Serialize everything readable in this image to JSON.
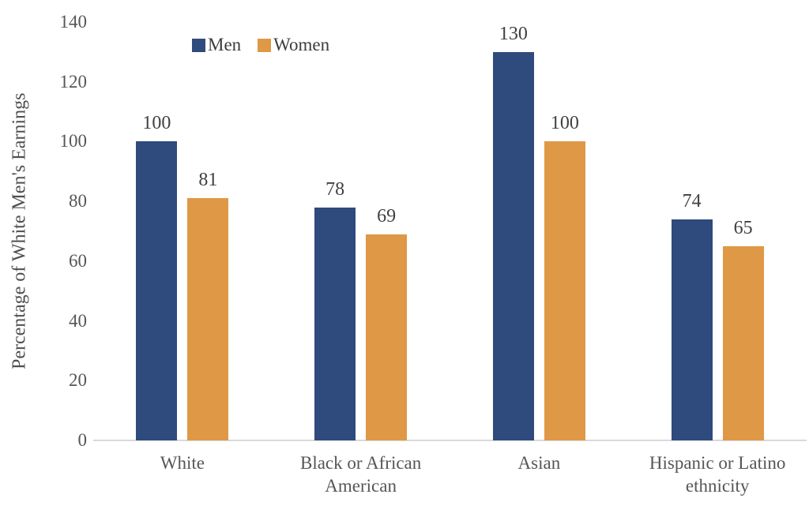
{
  "chart_data": {
    "type": "bar",
    "categories": [
      "White",
      "Black or African American",
      "Asian",
      "Hispanic or Latino ethnicity"
    ],
    "series": [
      {
        "name": "Men",
        "color": "#2F4A7C",
        "values": [
          100,
          78,
          130,
          74
        ]
      },
      {
        "name": "Women",
        "color": "#DF9845",
        "values": [
          81,
          69,
          100,
          65
        ]
      }
    ],
    "title": "",
    "xlabel": "",
    "ylabel": "Percentage of White Men's Earnings",
    "ylim": [
      0,
      140
    ],
    "ytick_step": 20,
    "yticks": [
      0,
      20,
      40,
      60,
      80,
      100,
      120,
      140
    ],
    "grid": false,
    "legend_position": "top-left",
    "data_labels": true
  },
  "colors": {
    "background": "#FFFFFF",
    "axis_line": "#D9D9D9",
    "tick_text": "#565656",
    "data_label_text": "#404040"
  }
}
